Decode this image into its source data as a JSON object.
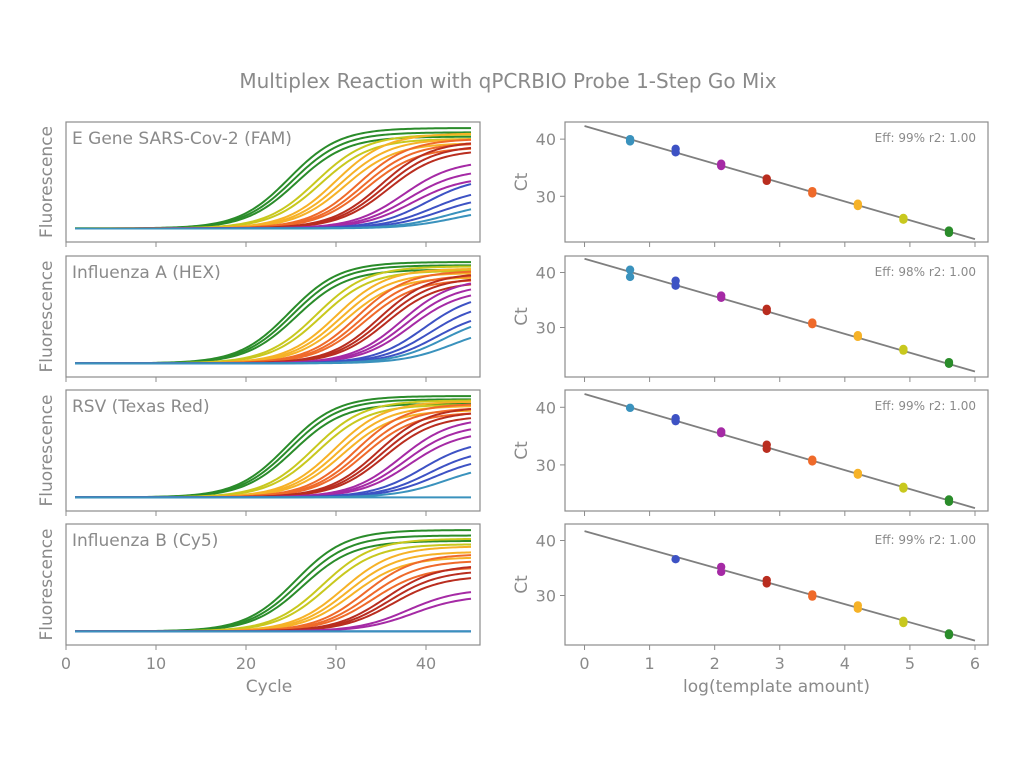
{
  "figure": {
    "title": "Multiplex Reaction with qPCRBIO Probe 1-Step Go Mix",
    "colors": {
      "frame": "#8c8c8c",
      "text": "#8a8a8a",
      "fit_line": "#7f7f7f",
      "dilutions": [
        "#2a8c2a",
        "#c8c81e",
        "#f6b227",
        "#ef6a2a",
        "#b92d1f",
        "#a52aa5",
        "#3d52c4",
        "#3a92bd"
      ]
    }
  },
  "chart_data": [
    {
      "type": "line",
      "title": "E Gene SARS-Cov-2 (FAM)",
      "xlabel": "",
      "ylabel": "Fluorescence",
      "xlim": [
        0,
        46
      ],
      "x_ticks": [],
      "grid": false,
      "series": [
        {
          "color": "#2a8c2a",
          "ct": [
            24.8,
            25.2,
            25.6
          ],
          "plateau": [
            1.0,
            0.96,
            0.92
          ]
        },
        {
          "color": "#c8c81e",
          "ct": [
            27.8,
            28.3
          ],
          "plateau": [
            0.94,
            0.9
          ]
        },
        {
          "color": "#f6b227",
          "ct": [
            30.0,
            30.5,
            31.0
          ],
          "plateau": [
            0.95,
            0.9,
            0.86
          ]
        },
        {
          "color": "#ef6a2a",
          "ct": [
            32.5,
            33.0,
            33.4
          ],
          "plateau": [
            0.9,
            0.86,
            0.82
          ]
        },
        {
          "color": "#b92d1f",
          "ct": [
            35.0,
            35.4,
            35.8
          ],
          "plateau": [
            0.88,
            0.84,
            0.8
          ]
        },
        {
          "color": "#a52aa5",
          "ct": [
            37.5,
            38.0,
            38.5
          ],
          "plateau": [
            0.7,
            0.62,
            0.55
          ]
        },
        {
          "color": "#3d52c4",
          "ct": [
            40.0,
            40.8,
            41.5
          ],
          "plateau": [
            0.55,
            0.45,
            0.38
          ]
        },
        {
          "color": "#3a92bd",
          "ct": [
            42.5,
            43.2
          ],
          "plateau": [
            0.32,
            0.26
          ]
        }
      ]
    },
    {
      "type": "line",
      "title": "Influenza A (HEX)",
      "xlabel": "",
      "ylabel": "Fluorescence",
      "xlim": [
        0,
        46
      ],
      "x_ticks": [],
      "grid": false,
      "series": [
        {
          "color": "#2a8c2a",
          "ct": [
            24.8,
            25.2,
            25.6
          ],
          "plateau": [
            1.0,
            0.97,
            0.93
          ]
        },
        {
          "color": "#c8c81e",
          "ct": [
            27.8,
            28.3
          ],
          "plateau": [
            0.96,
            0.92
          ]
        },
        {
          "color": "#f6b227",
          "ct": [
            30.0,
            30.5,
            31.0
          ],
          "plateau": [
            0.94,
            0.9,
            0.86
          ]
        },
        {
          "color": "#ef6a2a",
          "ct": [
            32.3,
            32.8,
            33.2
          ],
          "plateau": [
            0.92,
            0.88,
            0.84
          ]
        },
        {
          "color": "#b92d1f",
          "ct": [
            34.8,
            35.2,
            35.6
          ],
          "plateau": [
            0.9,
            0.86,
            0.82
          ]
        },
        {
          "color": "#a52aa5",
          "ct": [
            37.3,
            37.8,
            38.3
          ],
          "plateau": [
            0.85,
            0.8,
            0.75
          ]
        },
        {
          "color": "#3d52c4",
          "ct": [
            39.8,
            40.5,
            41.2
          ],
          "plateau": [
            0.72,
            0.64,
            0.56
          ]
        },
        {
          "color": "#3a92bd",
          "ct": [
            42.0,
            43.0
          ],
          "plateau": [
            0.52,
            0.42
          ]
        }
      ]
    },
    {
      "type": "line",
      "title": "RSV (Texas Red)",
      "xlabel": "",
      "ylabel": "Fluorescence",
      "xlim": [
        0,
        46
      ],
      "x_ticks": [],
      "grid": false,
      "series": [
        {
          "color": "#2a8c2a",
          "ct": [
            24.5,
            24.9,
            25.3
          ],
          "plateau": [
            1.0,
            0.97,
            0.93
          ]
        },
        {
          "color": "#c8c81e",
          "ct": [
            27.5,
            28.0
          ],
          "plateau": [
            0.96,
            0.92
          ]
        },
        {
          "color": "#f6b227",
          "ct": [
            29.8,
            30.3,
            30.8
          ],
          "plateau": [
            0.95,
            0.91,
            0.87
          ]
        },
        {
          "color": "#ef6a2a",
          "ct": [
            32.2,
            32.7,
            33.1
          ],
          "plateau": [
            0.93,
            0.89,
            0.85
          ]
        },
        {
          "color": "#b92d1f",
          "ct": [
            34.6,
            35.0,
            35.4
          ],
          "plateau": [
            0.9,
            0.86,
            0.82
          ]
        },
        {
          "color": "#a52aa5",
          "ct": [
            37.2,
            37.7,
            38.2
          ],
          "plateau": [
            0.8,
            0.74,
            0.68
          ]
        },
        {
          "color": "#3d52c4",
          "ct": [
            39.6,
            40.4,
            41.0
          ],
          "plateau": [
            0.6,
            0.52,
            0.45
          ]
        },
        {
          "color": "#3a92bd",
          "ct": [
            42.2,
            99
          ],
          "plateau": [
            0.38,
            0.0
          ]
        }
      ]
    },
    {
      "type": "line",
      "title": "Influenza B (Cy5)",
      "xlabel": "Cycle",
      "ylabel": "Fluorescence",
      "xlim": [
        0,
        46
      ],
      "x_ticks": [
        0,
        10,
        20,
        30,
        40
      ],
      "grid": false,
      "series": [
        {
          "color": "#2a8c2a",
          "ct": [
            25.5,
            25.9,
            26.3
          ],
          "plateau": [
            1.0,
            0.95,
            0.9
          ]
        },
        {
          "color": "#c8c81e",
          "ct": [
            28.5,
            29.0
          ],
          "plateau": [
            0.92,
            0.87
          ]
        },
        {
          "color": "#f6b227",
          "ct": [
            30.8,
            31.3,
            31.8
          ],
          "plateau": [
            0.85,
            0.8,
            0.75
          ]
        },
        {
          "color": "#ef6a2a",
          "ct": [
            33.2,
            33.7,
            34.1
          ],
          "plateau": [
            0.78,
            0.72,
            0.66
          ]
        },
        {
          "color": "#b92d1f",
          "ct": [
            35.5,
            35.9,
            36.3
          ],
          "plateau": [
            0.68,
            0.63,
            0.58
          ]
        },
        {
          "color": "#a52aa5",
          "ct": [
            38.0,
            38.6
          ],
          "plateau": [
            0.46,
            0.4
          ]
        },
        {
          "color": "#3d52c4",
          "ct": [
            99,
            99
          ],
          "plateau": [
            0.0,
            0.0
          ]
        },
        {
          "color": "#3a92bd",
          "ct": [
            99
          ],
          "plateau": [
            0.0
          ]
        }
      ]
    },
    {
      "type": "scatter",
      "annotation": "Eff: 99% r2: 1.00",
      "xlabel": "",
      "ylabel": "Ct",
      "xlim": [
        -0.3,
        6.2
      ],
      "ylim": [
        22,
        43
      ],
      "x_ticks": [],
      "y_ticks": [
        30,
        40
      ],
      "grid": false,
      "fit": {
        "x": [
          0,
          6
        ],
        "y": [
          42.3,
          22.5
        ]
      },
      "points": [
        {
          "x": 0.7,
          "y": [
            40.0,
            39.6
          ],
          "color": "#3a92bd"
        },
        {
          "x": 1.4,
          "y": [
            38.3,
            37.7
          ],
          "color": "#3d52c4"
        },
        {
          "x": 2.1,
          "y": [
            35.7,
            35.3
          ],
          "color": "#a52aa5"
        },
        {
          "x": 2.8,
          "y": [
            33.1,
            32.7
          ],
          "color": "#b92d1f"
        },
        {
          "x": 3.5,
          "y": [
            30.9,
            30.5
          ],
          "color": "#ef6a2a"
        },
        {
          "x": 4.2,
          "y": [
            28.7,
            28.3
          ],
          "color": "#f6b227"
        },
        {
          "x": 4.9,
          "y": [
            26.2,
            25.9
          ],
          "color": "#c8c81e"
        },
        {
          "x": 5.6,
          "y": [
            24.0,
            23.6
          ],
          "color": "#2a8c2a"
        }
      ]
    },
    {
      "type": "scatter",
      "annotation": "Eff: 98% r2: 1.00",
      "xlabel": "",
      "ylabel": "Ct",
      "xlim": [
        -0.3,
        6.2
      ],
      "ylim": [
        21,
        43
      ],
      "x_ticks": [],
      "y_ticks": [
        30,
        40
      ],
      "grid": false,
      "fit": {
        "x": [
          0,
          6
        ],
        "y": [
          42.5,
          22.0
        ]
      },
      "points": [
        {
          "x": 0.7,
          "y": [
            40.5,
            39.2
          ],
          "color": "#3a92bd"
        },
        {
          "x": 1.4,
          "y": [
            38.5,
            37.6
          ],
          "color": "#3d52c4"
        },
        {
          "x": 2.1,
          "y": [
            35.8,
            35.4
          ],
          "color": "#a52aa5"
        },
        {
          "x": 2.8,
          "y": [
            33.4,
            33.0
          ],
          "color": "#b92d1f"
        },
        {
          "x": 3.5,
          "y": [
            30.9,
            30.6
          ],
          "color": "#ef6a2a"
        },
        {
          "x": 4.2,
          "y": [
            28.6,
            28.3
          ],
          "color": "#f6b227"
        },
        {
          "x": 4.9,
          "y": [
            26.1,
            25.8
          ],
          "color": "#c8c81e"
        },
        {
          "x": 5.6,
          "y": [
            23.7,
            23.4
          ],
          "color": "#2a8c2a"
        }
      ]
    },
    {
      "type": "scatter",
      "annotation": "Eff: 99% r2: 1.00",
      "xlabel": "",
      "ylabel": "Ct",
      "xlim": [
        -0.3,
        6.2
      ],
      "ylim": [
        22,
        43
      ],
      "x_ticks": [],
      "y_ticks": [
        30,
        40
      ],
      "grid": false,
      "fit": {
        "x": [
          0,
          6
        ],
        "y": [
          42.3,
          22.5
        ]
      },
      "points": [
        {
          "x": 0.7,
          "y": [
            39.9
          ],
          "color": "#3a92bd"
        },
        {
          "x": 1.4,
          "y": [
            38.1,
            37.6
          ],
          "color": "#3d52c4"
        },
        {
          "x": 2.1,
          "y": [
            35.8,
            35.5
          ],
          "color": "#a52aa5"
        },
        {
          "x": 2.8,
          "y": [
            33.5,
            32.8
          ],
          "color": "#b92d1f"
        },
        {
          "x": 3.5,
          "y": [
            30.9,
            30.6
          ],
          "color": "#ef6a2a"
        },
        {
          "x": 4.2,
          "y": [
            28.6,
            28.3
          ],
          "color": "#f6b227"
        },
        {
          "x": 4.9,
          "y": [
            26.2,
            25.9
          ],
          "color": "#c8c81e"
        },
        {
          "x": 5.6,
          "y": [
            24.0,
            23.6
          ],
          "color": "#2a8c2a"
        }
      ]
    },
    {
      "type": "scatter",
      "annotation": "Eff: 99% r2: 1.00",
      "xlabel": "log(template amount)",
      "ylabel": "Ct",
      "xlim": [
        -0.3,
        6.2
      ],
      "ylim": [
        21,
        43
      ],
      "x_ticks": [
        0,
        1,
        2,
        3,
        4,
        5,
        6
      ],
      "y_ticks": [
        30,
        40
      ],
      "grid": false,
      "fit": {
        "x": [
          0,
          6
        ],
        "y": [
          41.7,
          21.8
        ]
      },
      "points": [
        {
          "x": 1.4,
          "y": [
            36.6
          ],
          "color": "#3d52c4"
        },
        {
          "x": 2.1,
          "y": [
            35.2,
            34.3
          ],
          "color": "#a52aa5"
        },
        {
          "x": 2.8,
          "y": [
            32.8,
            32.2
          ],
          "color": "#b92d1f"
        },
        {
          "x": 3.5,
          "y": [
            30.2,
            29.8
          ],
          "color": "#ef6a2a"
        },
        {
          "x": 4.2,
          "y": [
            28.2,
            27.6
          ],
          "color": "#f6b227"
        },
        {
          "x": 4.9,
          "y": [
            25.4,
            25.0
          ],
          "color": "#c8c81e"
        },
        {
          "x": 5.6,
          "y": [
            23.1,
            22.8
          ],
          "color": "#2a8c2a"
        }
      ]
    }
  ]
}
